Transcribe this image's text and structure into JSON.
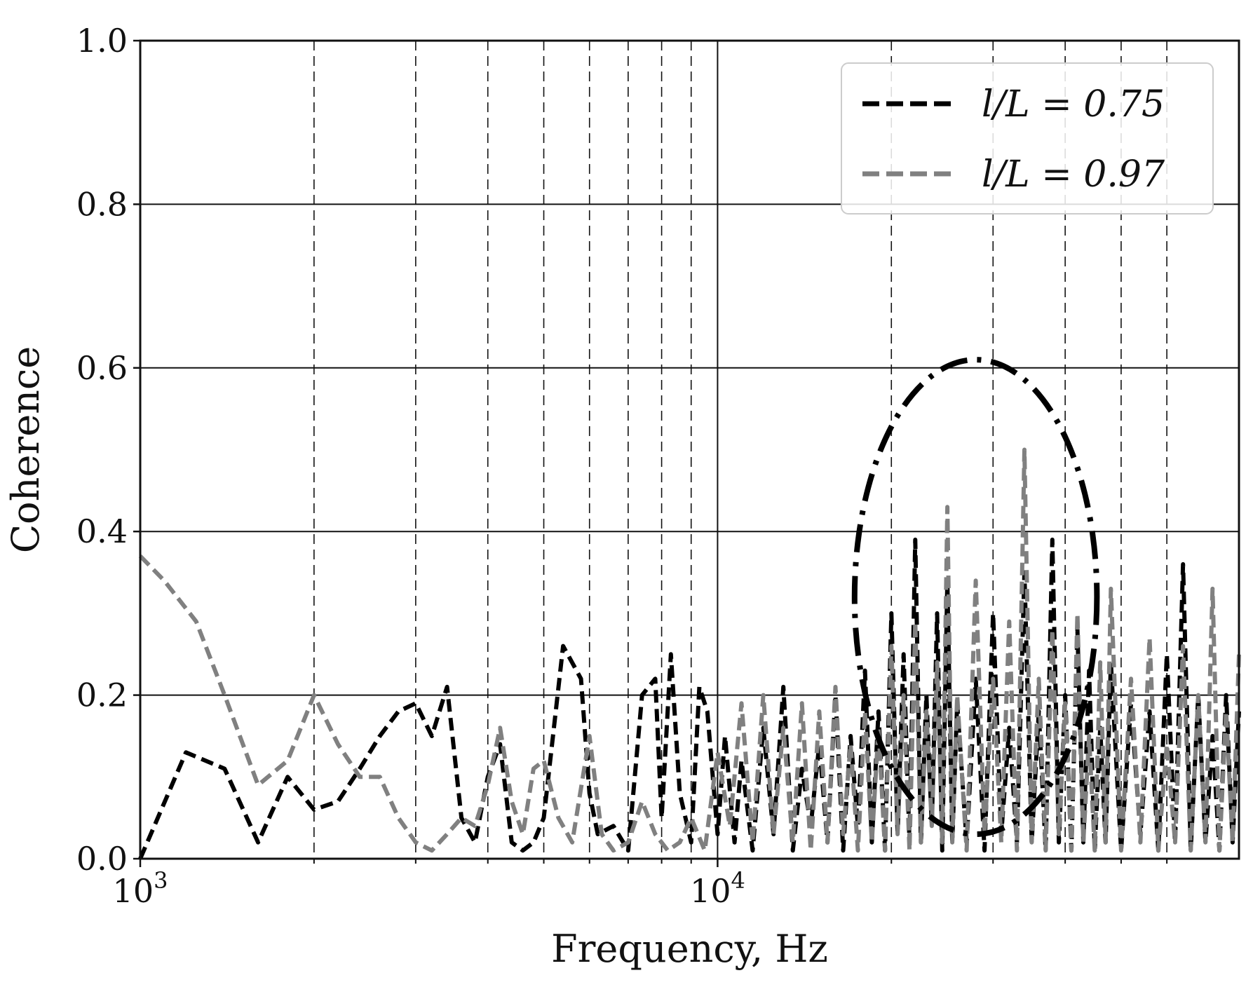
{
  "chart_data": {
    "type": "line",
    "xlabel": "Frequency, Hz",
    "ylabel": "Coherence",
    "xscale": "log",
    "xlim": [
      1000,
      80000
    ],
    "ylim": [
      0.0,
      1.0
    ],
    "yticks": [
      0.0,
      0.2,
      0.4,
      0.6,
      0.8,
      1.0
    ],
    "ytick_labels": [
      "0.0",
      "0.2",
      "0.4",
      "0.6",
      "0.8",
      "1.0"
    ],
    "xticks_major": [
      1000,
      10000
    ],
    "xtick_labels": [
      {
        "base": "10",
        "exp": "3"
      },
      {
        "base": "10",
        "exp": "4"
      }
    ],
    "grid": true,
    "legend_position": "top-right",
    "series": [
      {
        "name": "l/L = 0.75",
        "color": "#000000",
        "style": "dashed",
        "x": [
          1000,
          1200,
          1400,
          1600,
          1800,
          2000,
          2200,
          2400,
          2600,
          2800,
          3000,
          3200,
          3400,
          3600,
          3800,
          4000,
          4200,
          4400,
          4600,
          4800,
          5000,
          5400,
          5800,
          6000,
          6200,
          6600,
          7000,
          7400,
          7800,
          8000,
          8300,
          8600,
          9000,
          9300,
          9600,
          10000,
          10300,
          10700,
          11000,
          11500,
          12000,
          12500,
          13000,
          13500,
          14000,
          14500,
          15000,
          15500,
          16000,
          16500,
          17000,
          17500,
          18000,
          18500,
          19000,
          19500,
          20000,
          20500,
          21000,
          21500,
          22000,
          22500,
          23000,
          23500,
          24000,
          24500,
          25000,
          25500,
          26000,
          27000,
          28000,
          29000,
          30000,
          31000,
          32000,
          33000,
          34000,
          35000,
          36000,
          37000,
          38000,
          39000,
          40000,
          41000,
          42000,
          43000,
          44000,
          45000,
          46000,
          47000,
          48000,
          50000,
          52000,
          54000,
          56000,
          58000,
          60000,
          62000,
          64000,
          66000,
          68000,
          70000,
          72000,
          74000,
          76000,
          78000,
          80000
        ],
        "y": [
          0.0,
          0.13,
          0.11,
          0.02,
          0.1,
          0.06,
          0.07,
          0.11,
          0.15,
          0.18,
          0.19,
          0.15,
          0.21,
          0.05,
          0.02,
          0.1,
          0.14,
          0.02,
          0.01,
          0.02,
          0.05,
          0.26,
          0.22,
          0.08,
          0.03,
          0.04,
          0.01,
          0.2,
          0.22,
          0.05,
          0.25,
          0.08,
          0.02,
          0.21,
          0.18,
          0.03,
          0.15,
          0.02,
          0.12,
          0.01,
          0.16,
          0.03,
          0.21,
          0.01,
          0.11,
          0.04,
          0.14,
          0.02,
          0.2,
          0.01,
          0.15,
          0.04,
          0.23,
          0.02,
          0.18,
          0.01,
          0.3,
          0.03,
          0.25,
          0.02,
          0.39,
          0.02,
          0.2,
          0.04,
          0.3,
          0.01,
          0.34,
          0.02,
          0.19,
          0.02,
          0.22,
          0.01,
          0.3,
          0.03,
          0.16,
          0.02,
          0.35,
          0.02,
          0.18,
          0.01,
          0.39,
          0.02,
          0.2,
          0.01,
          0.28,
          0.02,
          0.23,
          0.01,
          0.16,
          0.02,
          0.24,
          0.01,
          0.19,
          0.03,
          0.18,
          0.01,
          0.25,
          0.02,
          0.36,
          0.01,
          0.2,
          0.02,
          0.15,
          0.01,
          0.2,
          0.02,
          0.18
        ]
      },
      {
        "name": "l/L = 0.97",
        "color": "#808080",
        "style": "dashed",
        "x": [
          1000,
          1100,
          1250,
          1400,
          1600,
          1800,
          2000,
          2200,
          2400,
          2600,
          2800,
          3000,
          3200,
          3400,
          3600,
          3800,
          4000,
          4200,
          4400,
          4600,
          4800,
          5000,
          5300,
          5600,
          6000,
          6300,
          6600,
          7000,
          7400,
          7800,
          8200,
          8600,
          9000,
          9500,
          10000,
          10500,
          11000,
          11500,
          12000,
          12500,
          13000,
          13500,
          14000,
          14500,
          15000,
          15500,
          16000,
          16500,
          17000,
          17500,
          18000,
          18500,
          19000,
          19500,
          20000,
          20500,
          21000,
          21500,
          22000,
          22500,
          23000,
          23500,
          24000,
          24500,
          25000,
          25500,
          26000,
          27000,
          28000,
          29000,
          30000,
          31000,
          32000,
          33000,
          34000,
          35000,
          36000,
          37000,
          38000,
          39000,
          40000,
          41000,
          42000,
          43000,
          44000,
          45000,
          46000,
          47000,
          48000,
          50000,
          52000,
          54000,
          56000,
          58000,
          60000,
          62000,
          64000,
          66000,
          68000,
          70000,
          72000,
          74000,
          76000,
          78000,
          80000
        ],
        "y": [
          0.37,
          0.34,
          0.29,
          0.2,
          0.09,
          0.12,
          0.2,
          0.14,
          0.1,
          0.1,
          0.05,
          0.02,
          0.01,
          0.03,
          0.05,
          0.04,
          0.09,
          0.16,
          0.07,
          0.03,
          0.11,
          0.12,
          0.05,
          0.02,
          0.15,
          0.03,
          0.01,
          0.02,
          0.07,
          0.03,
          0.01,
          0.02,
          0.05,
          0.01,
          0.13,
          0.04,
          0.19,
          0.02,
          0.2,
          0.03,
          0.16,
          0.02,
          0.19,
          0.01,
          0.18,
          0.02,
          0.21,
          0.03,
          0.14,
          0.01,
          0.18,
          0.02,
          0.16,
          0.01,
          0.26,
          0.03,
          0.2,
          0.01,
          0.29,
          0.02,
          0.18,
          0.04,
          0.24,
          0.02,
          0.43,
          0.02,
          0.2,
          0.01,
          0.34,
          0.03,
          0.22,
          0.02,
          0.29,
          0.01,
          0.5,
          0.02,
          0.22,
          0.01,
          0.28,
          0.03,
          0.19,
          0.01,
          0.3,
          0.02,
          0.15,
          0.01,
          0.24,
          0.02,
          0.33,
          0.01,
          0.22,
          0.02,
          0.27,
          0.01,
          0.14,
          0.02,
          0.26,
          0.01,
          0.2,
          0.02,
          0.33,
          0.01,
          0.18,
          0.02,
          0.25
        ]
      }
    ],
    "annotation": {
      "shape": "ellipse",
      "style": "dash-dot",
      "color": "#000000",
      "x_center": 28000,
      "x_min": 17500,
      "x_max": 46000,
      "y_center": 0.32,
      "y_min": 0.02,
      "y_max": 0.6
    },
    "vertical_dashed_lines_x": [
      2000,
      3000,
      4000,
      5000,
      6000,
      7000,
      8000,
      9000,
      20000,
      30000,
      40000,
      50000,
      60000
    ]
  }
}
